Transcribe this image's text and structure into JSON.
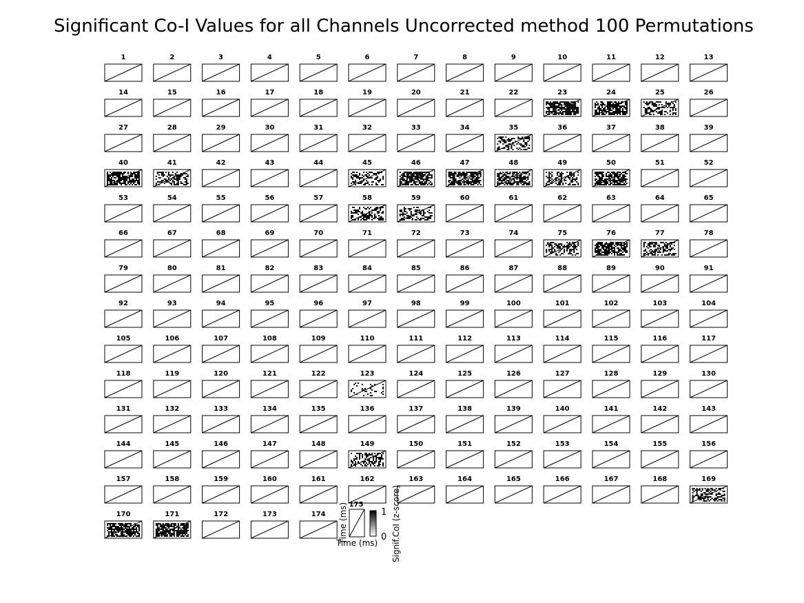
{
  "chart_data": {
    "type": "heatmap",
    "title": "Significant Co-I Values for all Channels Uncorrected method 100 Permutations",
    "grid": {
      "rows": 14,
      "columns": 13
    },
    "panel_titles": [
      "1",
      "2",
      "3",
      "4",
      "5",
      "6",
      "7",
      "8",
      "9",
      "10",
      "11",
      "12",
      "13",
      "14",
      "15",
      "16",
      "17",
      "18",
      "19",
      "20",
      "21",
      "22",
      "23",
      "24",
      "25",
      "26",
      "27",
      "28",
      "29",
      "30",
      "31",
      "32",
      "33",
      "34",
      "35",
      "36",
      "37",
      "38",
      "39",
      "40",
      "41",
      "42",
      "43",
      "44",
      "45",
      "46",
      "47",
      "48",
      "49",
      "50",
      "51",
      "52",
      "53",
      "54",
      "55",
      "56",
      "57",
      "58",
      "59",
      "60",
      "61",
      "62",
      "63",
      "64",
      "65",
      "66",
      "67",
      "68",
      "69",
      "70",
      "71",
      "72",
      "73",
      "74",
      "75",
      "76",
      "77",
      "78",
      "79",
      "80",
      "81",
      "82",
      "83",
      "84",
      "85",
      "86",
      "87",
      "88",
      "89",
      "90",
      "91",
      "92",
      "93",
      "94",
      "95",
      "96",
      "97",
      "98",
      "99",
      "100",
      "101",
      "102",
      "103",
      "104",
      "105",
      "106",
      "107",
      "108",
      "109",
      "110",
      "111",
      "112",
      "113",
      "114",
      "115",
      "116",
      "117",
      "118",
      "119",
      "120",
      "121",
      "122",
      "123",
      "124",
      "125",
      "126",
      "127",
      "128",
      "129",
      "130",
      "131",
      "132",
      "133",
      "134",
      "135",
      "136",
      "137",
      "138",
      "139",
      "140",
      "141",
      "142",
      "143",
      "144",
      "145",
      "146",
      "147",
      "148",
      "149",
      "150",
      "151",
      "152",
      "153",
      "154",
      "155",
      "156",
      "157",
      "158",
      "159",
      "160",
      "161",
      "162",
      "163",
      "164",
      "165",
      "166",
      "167",
      "168",
      "169",
      "170",
      "171",
      "172",
      "173",
      "174"
    ],
    "significant_channels": [
      {
        "channel": 23,
        "level": "high"
      },
      {
        "channel": 24,
        "level": "high"
      },
      {
        "channel": 25,
        "level": "medium"
      },
      {
        "channel": 35,
        "level": "medium"
      },
      {
        "channel": 40,
        "level": "high"
      },
      {
        "channel": 41,
        "level": "medium"
      },
      {
        "channel": 45,
        "level": "medium"
      },
      {
        "channel": 46,
        "level": "high"
      },
      {
        "channel": 47,
        "level": "high"
      },
      {
        "channel": 48,
        "level": "high"
      },
      {
        "channel": 49,
        "level": "medium"
      },
      {
        "channel": 50,
        "level": "high"
      },
      {
        "channel": 58,
        "level": "medium"
      },
      {
        "channel": 59,
        "level": "medium"
      },
      {
        "channel": 75,
        "level": "medium"
      },
      {
        "channel": 76,
        "level": "high"
      },
      {
        "channel": 77,
        "level": "medium"
      },
      {
        "channel": 123,
        "level": "low"
      },
      {
        "channel": 149,
        "level": "medium"
      },
      {
        "channel": 169,
        "level": "medium"
      },
      {
        "channel": 170,
        "level": "high"
      },
      {
        "channel": 171,
        "level": "high"
      }
    ],
    "reference_panel": {
      "title": "175",
      "xlabel": "Time (ms)",
      "ylabel": "Time (ms)"
    },
    "colorbar": {
      "label": "Signif.CoI (z-score)",
      "range": [
        0,
        1
      ],
      "ticks": [
        "1",
        "0"
      ],
      "colors": [
        "#ffffff",
        "#000000"
      ]
    },
    "colors": {
      "ink": "#000000",
      "background": "#ffffff"
    }
  }
}
